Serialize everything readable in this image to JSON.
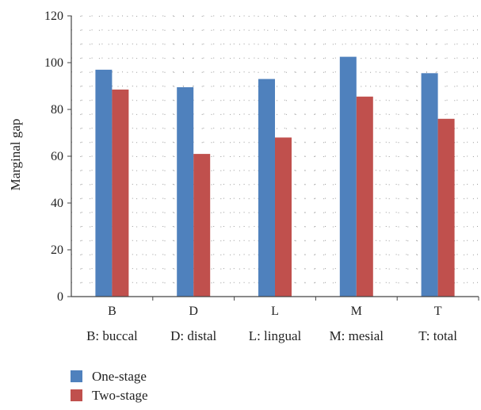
{
  "chart_data": {
    "type": "bar",
    "categories": [
      "B",
      "D",
      "L",
      "M",
      "T"
    ],
    "category_footnotes": [
      "B: buccal",
      "D: distal",
      "L: lingual",
      "M: mesial",
      "T: total"
    ],
    "series": [
      {
        "name": "One-stage",
        "values": [
          97,
          89.5,
          93,
          102.5,
          95.5
        ],
        "color": "#4f81bd"
      },
      {
        "name": "Two-stage",
        "values": [
          88.5,
          61,
          68,
          85.5,
          76
        ],
        "color": "#c0504d"
      }
    ],
    "xlabel": "",
    "ylabel": "Marginal gap",
    "ylim": [
      0,
      120
    ],
    "yticks": [
      0,
      20,
      40,
      60,
      80,
      100,
      120
    ],
    "grid": "dotted",
    "legend_position": "bottom-left"
  }
}
